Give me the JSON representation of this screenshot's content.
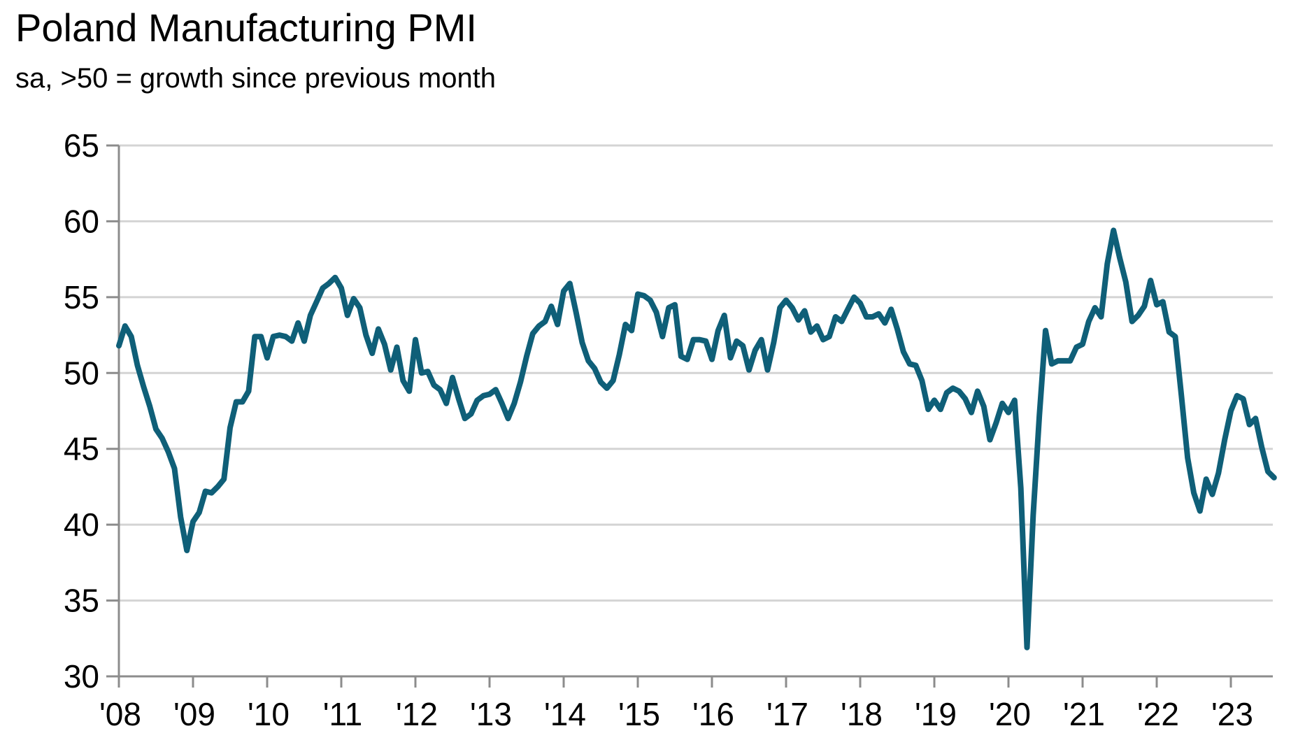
{
  "title": "Poland Manufacturing PMI",
  "subtitle": "sa, >50 = growth since previous month",
  "colors": {
    "line": "#0f5f78",
    "grid": "#d4d4d4",
    "axis": "#8c8c8c"
  },
  "chart_data": {
    "type": "line",
    "title": "Poland Manufacturing PMI",
    "subtitle": "sa, >50 = growth since previous month",
    "xlabel": "",
    "ylabel": "",
    "ylim": [
      30,
      65
    ],
    "yticks": [
      30,
      35,
      40,
      45,
      50,
      55,
      60,
      65
    ],
    "x_range": [
      "2008-01",
      "2023-08"
    ],
    "xtick_labels": [
      "'08",
      "'09",
      "'10",
      "'11",
      "'12",
      "'13",
      "'14",
      "'15",
      "'16",
      "'17",
      "'18",
      "'19",
      "'20",
      "'21",
      "'22",
      "'23"
    ],
    "grid": true,
    "legend": false,
    "series": [
      {
        "values": [
          51.8,
          53.1,
          52.4,
          50.5,
          49.1,
          47.8,
          46.3,
          45.7,
          44.8,
          43.7,
          40.5,
          38.3,
          40.2,
          40.8,
          42.2,
          42.1,
          42.5,
          43.0,
          46.4,
          48.1,
          48.1,
          48.8,
          52.4,
          52.4,
          51.0,
          52.4,
          52.5,
          52.4,
          52.1,
          53.3,
          52.1,
          53.8,
          54.7,
          55.6,
          55.9,
          56.3,
          55.6,
          53.8,
          54.9,
          54.3,
          52.5,
          51.3,
          52.9,
          51.9,
          50.2,
          51.7,
          49.5,
          48.8,
          52.2,
          50.0,
          50.1,
          49.2,
          48.9,
          48.0,
          49.7,
          48.3,
          47.0,
          47.3,
          48.2,
          48.5,
          48.6,
          48.9,
          48.0,
          47.0,
          48.0,
          49.4,
          51.1,
          52.6,
          53.1,
          53.4,
          54.4,
          53.2,
          55.4,
          55.9,
          54.0,
          52.0,
          50.8,
          50.3,
          49.4,
          49.0,
          49.5,
          51.2,
          53.2,
          52.8,
          55.2,
          55.1,
          54.8,
          54.0,
          52.4,
          54.3,
          54.5,
          51.1,
          50.9,
          52.2,
          52.2,
          52.1,
          50.9,
          52.8,
          53.8,
          51.0,
          52.1,
          51.8,
          50.2,
          51.5,
          52.2,
          50.2,
          52.0,
          54.3,
          54.8,
          54.3,
          53.5,
          54.1,
          52.7,
          53.1,
          52.2,
          52.4,
          53.7,
          53.4,
          54.2,
          55.0,
          54.6,
          53.7,
          53.7,
          53.9,
          53.3,
          54.2,
          52.9,
          51.4,
          50.6,
          50.5,
          49.5,
          47.6,
          48.2,
          47.6,
          48.7,
          49.0,
          48.8,
          48.3,
          47.4,
          48.8,
          47.8,
          45.6,
          46.7,
          48.0,
          47.4,
          48.2,
          42.4,
          31.9,
          40.6,
          47.2,
          52.8,
          50.6,
          50.8,
          50.8,
          50.8,
          51.7,
          51.9,
          53.4,
          54.3,
          53.7,
          57.2,
          59.4,
          57.6,
          56.0,
          53.4,
          53.8,
          54.4,
          56.1,
          54.5,
          54.7,
          52.7,
          52.4,
          48.5,
          44.4,
          42.1,
          40.9,
          43.0,
          42.0,
          43.4,
          45.6,
          47.5,
          48.5,
          48.3,
          46.6,
          47.0,
          45.1,
          43.5,
          43.1
        ]
      }
    ]
  }
}
